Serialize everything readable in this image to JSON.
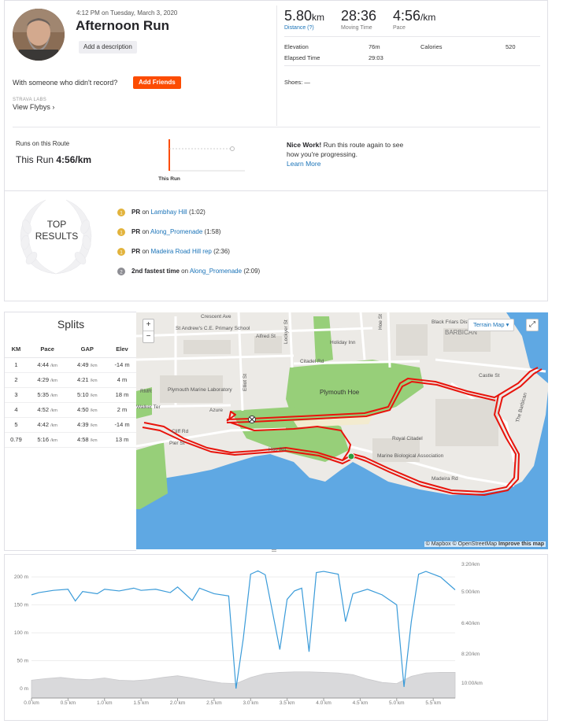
{
  "activity": {
    "date": "4:12 PM on Tuesday, March 3, 2020",
    "title": "Afternoon Run",
    "add_description": "Add a description",
    "with_someone": "With someone who didn't record?",
    "add_friends": "Add Friends",
    "labs": "STRAVA LABS",
    "view_flybys": "View Flybys ›"
  },
  "stats": {
    "distance": {
      "value": "5.80",
      "unit": "km",
      "label": "Distance (?)"
    },
    "moving_time": {
      "value": "28:36",
      "label": "Moving Time"
    },
    "pace": {
      "value": "4:56",
      "unit": "/km",
      "label": "Pace"
    },
    "elevation_label": "Elevation",
    "elevation_value": "76m",
    "calories_label": "Calories",
    "calories_value": "520",
    "elapsed_label": "Elapsed Time",
    "elapsed_value": "29:03",
    "shoes": "Shoes: —"
  },
  "route": {
    "runs_on_route": "Runs on this Route",
    "this_run_label": "This Run",
    "this_run_pace": "4:56/km",
    "chart_caption": "This Run",
    "nice_work_bold": "Nice Work!",
    "nice_work_text": " Run this route again to see how you're progressing.",
    "learn_more": "Learn More"
  },
  "results": {
    "title_line1": "TOP",
    "title_line2": "RESULTS",
    "items": [
      {
        "medal": "1",
        "prefix": "PR",
        "on": " on ",
        "segment": "Lambhay Hill",
        "time": " (1:02)",
        "type": "gold"
      },
      {
        "medal": "1",
        "prefix": "PR",
        "on": " on ",
        "segment": "Along_Promenade",
        "time": " (1:58)",
        "type": "gold"
      },
      {
        "medal": "1",
        "prefix": "PR",
        "on": " on ",
        "segment": "Madeira Road Hill rep",
        "time": " (2:36)",
        "type": "gold"
      },
      {
        "medal": "2",
        "prefix": "2nd fastest time",
        "on": " on ",
        "segment": "Along_Promenade",
        "time": " (2:09)",
        "type": "silver"
      }
    ]
  },
  "splits": {
    "title": "Splits",
    "headers": [
      "KM",
      "Pace",
      "GAP",
      "Elev"
    ],
    "unit": "/km",
    "rows": [
      {
        "km": "1",
        "pace": "4:44",
        "gap": "4:49",
        "elev": "-14 m"
      },
      {
        "km": "2",
        "pace": "4:29",
        "gap": "4:21",
        "elev": "4 m"
      },
      {
        "km": "3",
        "pace": "5:35",
        "gap": "5:10",
        "elev": "18 m"
      },
      {
        "km": "4",
        "pace": "4:52",
        "gap": "4:50",
        "elev": "2 m"
      },
      {
        "km": "5",
        "pace": "4:42",
        "gap": "4:39",
        "elev": "-14 m"
      },
      {
        "km": "0.79",
        "pace": "5:16",
        "gap": "4:58",
        "elev": "13 m"
      }
    ]
  },
  "map": {
    "terrain_button": "Terrain Map ▾",
    "zoom_in": "+",
    "zoom_out": "−",
    "expand": "⤢",
    "attrib_1": "© Mapbox © OpenStreetMap ",
    "attrib_2": "Improve this map",
    "labels": [
      "Crescent Ave",
      "Alfred St",
      "Lockyer St",
      "Hoe St",
      "Holiday Inn",
      "Citadel Rd",
      "Castle St",
      "BARBICAN",
      "Black Friars Distillery",
      "St Andrew's C.E. Primary School",
      "Plymouth Marine Laboratory",
      "Plymouth Hoe",
      "Elliot St",
      "Azure",
      "Walker Ter",
      "Cliff Rd",
      "Pier St",
      "Hoe Rd",
      "Royal Citadel",
      "Marine Biological Association",
      "Madeira Rd",
      "The Barbican",
      "RMR"
    ],
    "colors": {
      "route": "#e8140c",
      "water": "#5fa8e3",
      "park": "#97cf79",
      "land": "#eceae6"
    }
  },
  "chart_data": {
    "type": "area",
    "x_label_unit": "km",
    "x_ticks": [
      "0.0 km",
      "0.5 km",
      "1.0 km",
      "1.5 km",
      "2.0 km",
      "2.5 km",
      "3.0 km",
      "3.5 km",
      "4.0 km",
      "4.5 km",
      "5.0 km",
      "5.5 km"
    ],
    "y_ticks": [
      "0 m",
      "50 m",
      "100 m",
      "150 m",
      "200 m"
    ],
    "ylim": [
      0,
      220
    ],
    "xlim": [
      0,
      5.8
    ],
    "pace_ticks": [
      "3:20/km",
      "5:00/km",
      "6:40/km",
      "8:20/km",
      "10:00/km"
    ],
    "series": [
      {
        "x": [
          0,
          0.2,
          0.4,
          0.6,
          0.8,
          1.0,
          1.2,
          1.4,
          1.6,
          1.8,
          2.0,
          2.2,
          2.4,
          2.6,
          2.8,
          3.0,
          3.2,
          3.4,
          3.6,
          3.8,
          4.0,
          4.2,
          4.4,
          4.6,
          4.8,
          5.0,
          5.2,
          5.4,
          5.6,
          5.8
        ],
        "values": [
          15,
          18,
          20,
          17,
          16,
          19,
          15,
          14,
          16,
          20,
          23,
          19,
          14,
          10,
          9,
          20,
          27,
          29,
          30,
          30,
          29,
          28,
          25,
          17,
          11,
          9,
          22,
          28,
          29,
          29
        ]
      },
      {
        "x": [
          0,
          0.1,
          0.3,
          0.5,
          0.6,
          0.7,
          0.9,
          1.0,
          1.2,
          1.4,
          1.5,
          1.7,
          1.9,
          2.0,
          2.2,
          2.3,
          2.5,
          2.7,
          2.8,
          2.9,
          3.0,
          3.1,
          3.2,
          3.4,
          3.5,
          3.6,
          3.7,
          3.8,
          3.9,
          4.0,
          4.2,
          4.3,
          4.4,
          4.6,
          4.7,
          4.8,
          5.0,
          5.1,
          5.2,
          5.3,
          5.4,
          5.6,
          5.8
        ],
        "values": [
          168,
          172,
          176,
          178,
          157,
          174,
          170,
          178,
          175,
          180,
          176,
          178,
          172,
          182,
          158,
          180,
          170,
          166,
          0,
          90,
          205,
          211,
          204,
          70,
          160,
          175,
          180,
          66,
          208,
          210,
          205,
          120,
          170,
          178,
          173,
          168,
          150,
          3,
          120,
          205,
          210,
          200,
          177
        ]
      }
    ]
  }
}
